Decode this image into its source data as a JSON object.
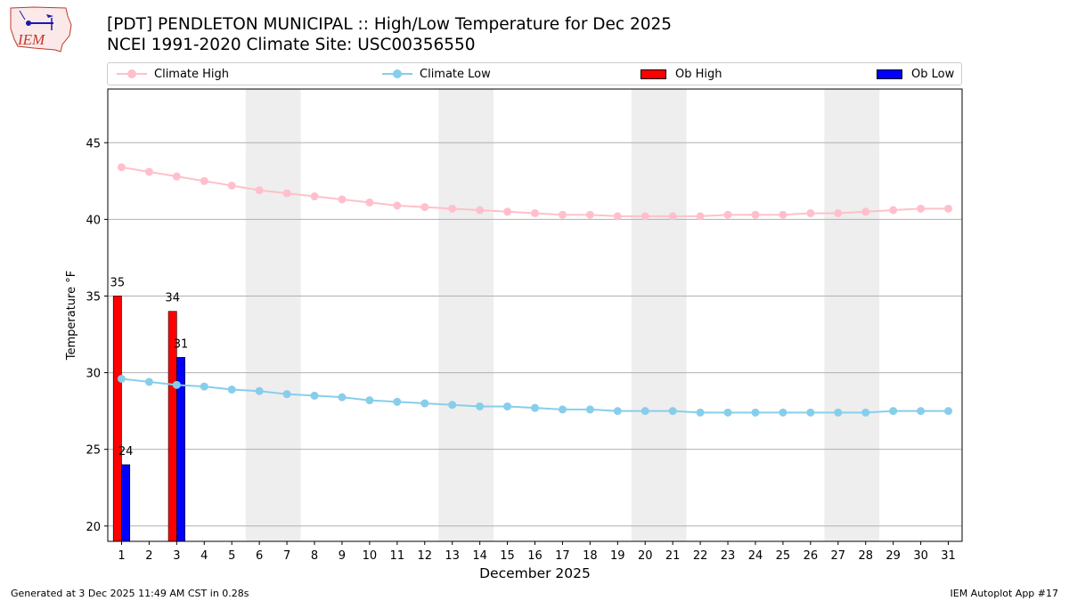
{
  "header": {
    "title": "[PDT] PENDLETON MUNICIPAL :: High/Low Temperature for Dec 2025",
    "subtitle": "NCEI 1991-2020 Climate Site: USC00356550"
  },
  "logo": {
    "text": "IEM",
    "icon": "iem-logo-icon"
  },
  "legend": {
    "climate_high": "Climate High",
    "climate_low": "Climate Low",
    "ob_high": "Ob High",
    "ob_low": "Ob Low"
  },
  "colors": {
    "climate_high": "#ffc0cb",
    "climate_low": "#87ceeb",
    "ob_high": "#ff0000",
    "ob_low": "#0000ff",
    "weekend": "#eeeeee",
    "grid": "#b0b0b0"
  },
  "chart_data": {
    "type": "bar",
    "title": "[PDT] PENDLETON MUNICIPAL :: High/Low Temperature for Dec 2025",
    "xlabel": "December 2025",
    "ylabel": "Temperature °F",
    "ylim": [
      19,
      48.5
    ],
    "xlim": [
      0.5,
      31.5
    ],
    "yticks": [
      20,
      25,
      30,
      35,
      40,
      45
    ],
    "x": [
      1,
      2,
      3,
      4,
      5,
      6,
      7,
      8,
      9,
      10,
      11,
      12,
      13,
      14,
      15,
      16,
      17,
      18,
      19,
      20,
      21,
      22,
      23,
      24,
      25,
      26,
      27,
      28,
      29,
      30,
      31
    ],
    "weekend_shading": [
      [
        6,
        7
      ],
      [
        13,
        14
      ],
      [
        20,
        21
      ],
      [
        27,
        28
      ]
    ],
    "series": [
      {
        "name": "Climate High",
        "kind": "line",
        "values": [
          43.4,
          43.1,
          42.8,
          42.5,
          42.2,
          41.9,
          41.7,
          41.5,
          41.3,
          41.1,
          40.9,
          40.8,
          40.7,
          40.6,
          40.5,
          40.4,
          40.3,
          40.3,
          40.2,
          40.2,
          40.2,
          40.2,
          40.3,
          40.3,
          40.3,
          40.4,
          40.4,
          40.5,
          40.6,
          40.7,
          40.7
        ]
      },
      {
        "name": "Climate Low",
        "kind": "line",
        "values": [
          29.6,
          29.4,
          29.2,
          29.1,
          28.9,
          28.8,
          28.6,
          28.5,
          28.4,
          28.2,
          28.1,
          28.0,
          27.9,
          27.8,
          27.8,
          27.7,
          27.6,
          27.6,
          27.5,
          27.5,
          27.5,
          27.4,
          27.4,
          27.4,
          27.4,
          27.4,
          27.4,
          27.4,
          27.5,
          27.5,
          27.5
        ]
      },
      {
        "name": "Ob High",
        "kind": "bar",
        "x": [
          1,
          3
        ],
        "values": [
          35,
          34
        ],
        "labels": [
          "35",
          "34"
        ]
      },
      {
        "name": "Ob Low",
        "kind": "bar",
        "x": [
          1,
          3
        ],
        "values": [
          24,
          31
        ],
        "labels": [
          "24",
          "31"
        ]
      }
    ]
  },
  "footer": {
    "generated": "Generated at 3 Dec 2025 11:49 AM CST in 0.28s",
    "app": "IEM Autoplot App #17"
  }
}
